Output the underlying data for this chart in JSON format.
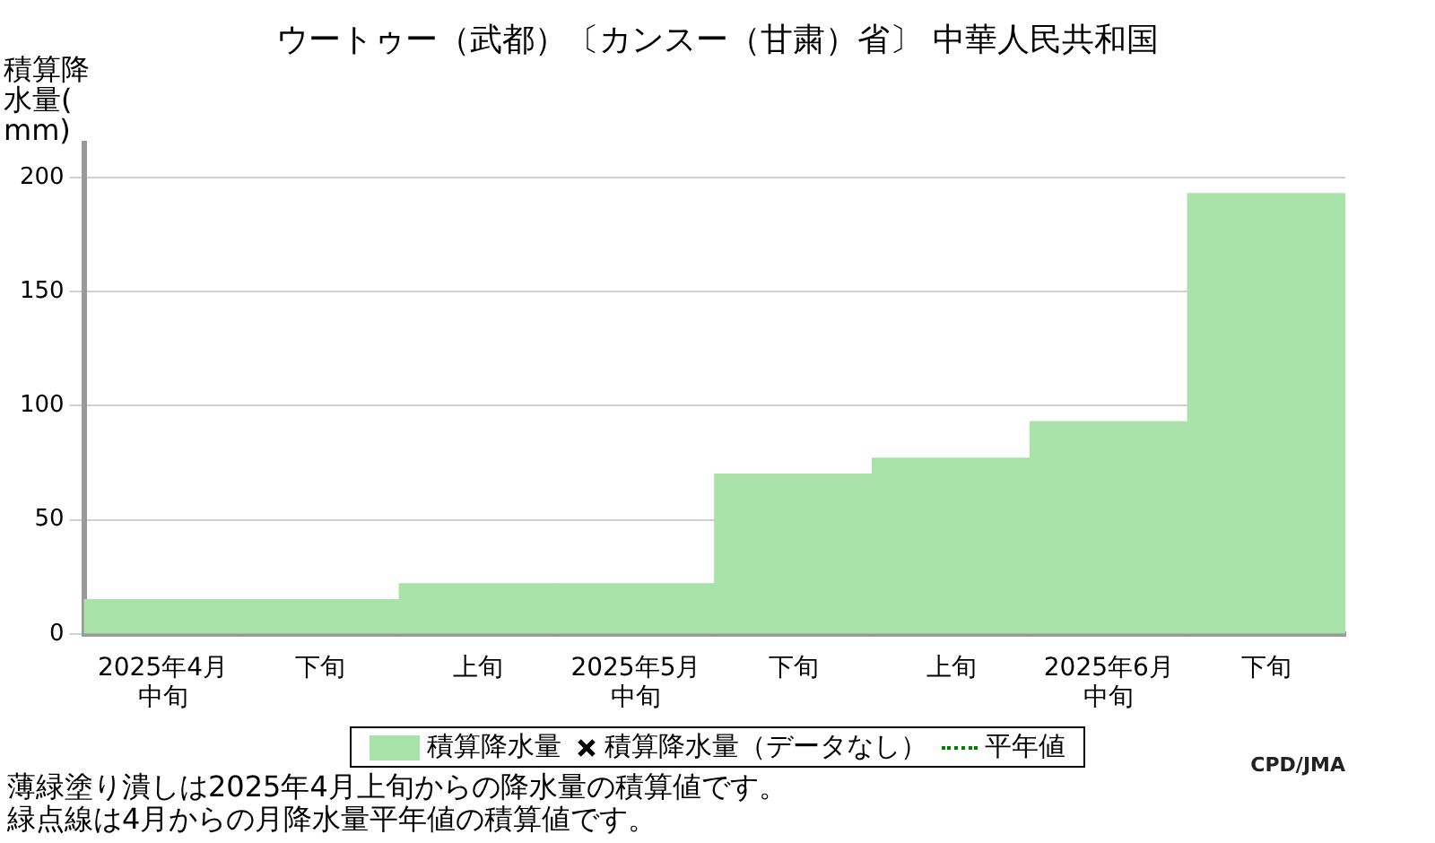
{
  "chart_data": {
    "type": "bar",
    "title": "ウートゥー（武都）〔カンスー（甘粛）省〕 中華人民共和国",
    "ylabel": "積算降水量(mm)",
    "categories": [
      "2025年4月中旬",
      "下旬",
      "上旬",
      "2025年5月中旬",
      "下旬",
      "上旬",
      "2025年6月中旬",
      "下旬"
    ],
    "series": [
      {
        "name": "積算降水量",
        "color": "#aae3aa",
        "values": [
          15,
          15,
          22,
          22,
          70,
          77,
          93,
          193
        ]
      },
      {
        "name": "積算降水量（データなし）",
        "type": "scatter",
        "marker": "cross",
        "color": "#000000",
        "values": [
          null,
          null,
          null,
          null,
          null,
          null,
          null,
          null
        ]
      },
      {
        "name": "平年値",
        "type": "line",
        "line_style": "dotted",
        "color": "#008000",
        "values": [
          null,
          null,
          null,
          null,
          null,
          null,
          null,
          null
        ]
      }
    ],
    "ylim": [
      0,
      215
    ],
    "yticks": [
      0,
      50,
      100,
      150,
      200
    ],
    "grid": "y",
    "legend": "bottom",
    "annotations": [
      "CPD/JMA",
      "薄緑塗り潰しは2025年4月上旬からの降水量の積算値です。",
      "緑点線は4月からの月降水量平年値の積算値です。"
    ]
  }
}
